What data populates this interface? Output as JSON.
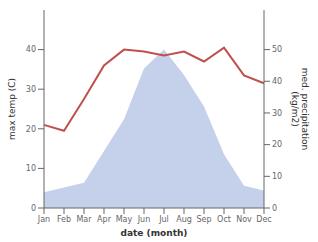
{
  "chart_data": {
    "type": "combo",
    "categories": [
      "Jan",
      "Feb",
      "Mar",
      "Apr",
      "May",
      "Jun",
      "Jul",
      "Aug",
      "Sep",
      "Oct",
      "Nov",
      "Dec"
    ],
    "xlabel": "date (month)",
    "ylabel": "max temp (C)",
    "y2label": "med. precipitation\n(kg/m2)",
    "ylim": [
      0,
      50
    ],
    "yticks": [
      0,
      10,
      20,
      30,
      40
    ],
    "y2lim": [
      0,
      62.5
    ],
    "y2ticks": [
      0,
      10,
      20,
      30,
      40,
      50
    ],
    "grid": false,
    "series": [
      {
        "type": "area",
        "axis": "y2",
        "color": "#c5d0ea",
        "values": [
          5.0,
          6.5,
          8.0,
          18.0,
          28.0,
          44.0,
          50.0,
          42.0,
          32.0,
          17.0,
          7.0,
          5.5
        ]
      },
      {
        "type": "line",
        "axis": "y",
        "color": "#c0504d",
        "values": [
          21.0,
          19.5,
          27.5,
          36.0,
          40.0,
          39.5,
          38.5,
          39.5,
          37.0,
          40.5,
          33.5,
          31.5
        ]
      }
    ]
  }
}
